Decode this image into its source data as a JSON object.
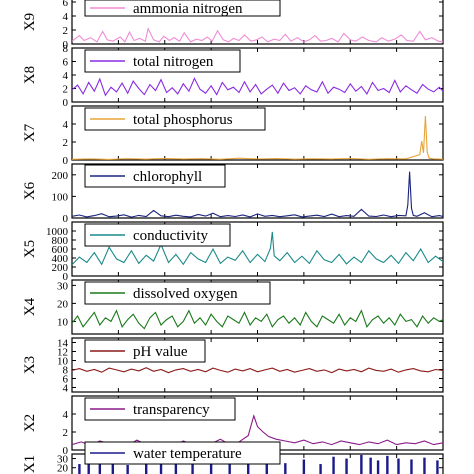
{
  "chart_data": [
    {
      "type": "line",
      "ylabel": "X9",
      "legend": "ammonia nitrogen",
      "color": "#f08cd6",
      "ylim": [
        0,
        8
      ],
      "yticks": [
        "0",
        "2",
        "4",
        "6"
      ],
      "x": [
        0,
        8,
        13,
        20,
        27,
        33,
        38,
        44,
        52,
        57,
        62,
        67,
        73,
        79,
        82,
        88,
        94,
        99,
        105,
        110,
        116,
        121,
        128,
        134,
        140,
        146,
        151,
        157,
        163,
        169,
        174,
        180,
        186,
        193,
        199,
        205,
        211,
        218,
        224,
        230,
        236,
        243,
        250,
        256,
        262,
        268,
        274,
        280,
        287,
        293,
        300,
        306,
        313,
        320,
        328,
        334,
        341,
        348,
        355,
        361,
        368,
        375,
        381,
        388,
        395,
        400
      ],
      "values": [
        0.4,
        1.2,
        0.5,
        0.9,
        0.3,
        1.8,
        0.6,
        0.4,
        1.0,
        0.3,
        1.7,
        0.5,
        0.8,
        0.4,
        2.2,
        0.6,
        0.3,
        1.1,
        0.5,
        0.9,
        0.4,
        1.6,
        0.3,
        0.7,
        0.5,
        1.0,
        0.4,
        1.9,
        0.6,
        0.3,
        0.8,
        0.5,
        1.3,
        0.4,
        0.6,
        1.0,
        0.3,
        0.7,
        0.5,
        1.4,
        0.4,
        0.9,
        0.3,
        0.6,
        1.2,
        0.4,
        0.5,
        0.8,
        0.3,
        1.5,
        0.6,
        0.4,
        1.0,
        0.5,
        0.3,
        0.9,
        0.4,
        0.7,
        1.3,
        0.5,
        0.4,
        1.8,
        0.6,
        0.9,
        0.4,
        0.3
      ]
    },
    {
      "type": "line",
      "ylabel": "X8",
      "legend": "total nitrogen",
      "color": "#8a2be2",
      "ylim": [
        0,
        8
      ],
      "yticks": [
        "0",
        "2",
        "4",
        "6",
        "8"
      ],
      "x": [
        0,
        6,
        12,
        18,
        24,
        30,
        36,
        42,
        48,
        54,
        60,
        66,
        72,
        78,
        84,
        90,
        96,
        102,
        108,
        114,
        120,
        126,
        132,
        138,
        144,
        150,
        156,
        162,
        168,
        174,
        180,
        186,
        192,
        198,
        204,
        210,
        216,
        222,
        228,
        234,
        240,
        246,
        252,
        258,
        264,
        270,
        276,
        282,
        288,
        294,
        300,
        306,
        312,
        318,
        324,
        330,
        336,
        342,
        348,
        354,
        360,
        366,
        372,
        378,
        384,
        390,
        396,
        400
      ],
      "values": [
        1.8,
        2.5,
        1.2,
        2.9,
        1.6,
        3.4,
        1.0,
        2.2,
        1.5,
        2.8,
        1.3,
        3.1,
        2.0,
        1.1,
        2.6,
        1.7,
        3.3,
        1.4,
        2.1,
        1.2,
        2.7,
        1.6,
        3.5,
        1.9,
        1.3,
        2.4,
        1.1,
        2.9,
        1.8,
        2.2,
        1.4,
        3.0,
        1.5,
        2.6,
        1.2,
        1.9,
        2.5,
        1.3,
        2.8,
        1.7,
        2.1,
        1.2,
        2.4,
        1.8,
        1.5,
        3.0,
        1.3,
        2.2,
        1.9,
        1.4,
        2.7,
        1.6,
        2.3,
        1.2,
        2.9,
        1.7,
        2.0,
        1.4,
        3.2,
        1.5,
        2.4,
        1.8,
        1.3,
        2.6,
        1.9,
        1.5,
        2.2,
        1.6
      ]
    },
    {
      "type": "line",
      "ylabel": "X7",
      "legend": "total phosphorus",
      "color": "#e8a33a",
      "ylim": [
        0,
        6
      ],
      "yticks": [
        "0",
        "2",
        "4"
      ],
      "x": [
        0,
        20,
        40,
        60,
        80,
        100,
        120,
        140,
        160,
        180,
        200,
        220,
        240,
        260,
        280,
        300,
        320,
        340,
        360,
        375,
        377,
        379,
        381,
        383,
        385,
        390,
        395,
        400
      ],
      "values": [
        0.08,
        0.12,
        0.07,
        0.15,
        0.09,
        0.18,
        0.1,
        0.14,
        0.08,
        0.2,
        0.11,
        0.16,
        0.09,
        0.13,
        0.1,
        0.17,
        0.08,
        0.15,
        0.12,
        0.6,
        2.1,
        0.8,
        4.9,
        0.9,
        0.2,
        0.12,
        0.1,
        0.09
      ]
    },
    {
      "type": "line",
      "ylabel": "X6",
      "legend": "chlorophyll",
      "color": "#1a237e",
      "ylim": [
        0,
        250
      ],
      "yticks": [
        "0",
        "100",
        "200"
      ],
      "x": [
        0,
        8,
        16,
        24,
        32,
        40,
        48,
        56,
        64,
        72,
        80,
        88,
        96,
        104,
        112,
        120,
        128,
        136,
        144,
        152,
        160,
        168,
        176,
        184,
        192,
        200,
        208,
        216,
        224,
        232,
        240,
        248,
        256,
        264,
        272,
        280,
        288,
        296,
        304,
        312,
        320,
        328,
        336,
        344,
        352,
        360,
        362,
        364,
        366,
        368,
        372,
        380,
        388,
        396,
        400
      ],
      "values": [
        8,
        14,
        5,
        11,
        20,
        6,
        9,
        15,
        4,
        12,
        7,
        35,
        10,
        6,
        13,
        8,
        5,
        16,
        9,
        22,
        6,
        11,
        7,
        14,
        5,
        19,
        8,
        12,
        6,
        10,
        15,
        5,
        9,
        13,
        7,
        18,
        6,
        11,
        8,
        40,
        9,
        7,
        14,
        6,
        12,
        10,
        60,
        215,
        45,
        12,
        8,
        24,
        6,
        11,
        7
      ]
    },
    {
      "type": "line",
      "ylabel": "X5",
      "legend": "conductivity",
      "color": "#1b8a8a",
      "ylim": [
        0,
        1200
      ],
      "yticks": [
        "0",
        "200",
        "400",
        "600",
        "800",
        "1000"
      ],
      "x": [
        0,
        8,
        16,
        24,
        32,
        40,
        48,
        56,
        64,
        72,
        80,
        88,
        96,
        104,
        112,
        120,
        128,
        136,
        144,
        152,
        160,
        168,
        176,
        184,
        192,
        200,
        208,
        214,
        216,
        218,
        224,
        232,
        240,
        248,
        256,
        264,
        272,
        280,
        288,
        296,
        304,
        312,
        320,
        328,
        336,
        344,
        352,
        360,
        368,
        376,
        384,
        392,
        400
      ],
      "values": [
        250,
        420,
        300,
        520,
        260,
        640,
        380,
        300,
        560,
        280,
        460,
        330,
        700,
        300,
        480,
        260,
        520,
        380,
        300,
        600,
        280,
        420,
        350,
        560,
        300,
        480,
        320,
        620,
        980,
        450,
        340,
        520,
        300,
        440,
        280,
        560,
        360,
        300,
        480,
        270,
        420,
        300,
        560,
        380,
        300,
        460,
        280,
        520,
        340,
        600,
        300,
        440,
        320
      ]
    },
    {
      "type": "line",
      "ylabel": "X4",
      "legend": "dissolved oxygen",
      "color": "#1b7a1b",
      "ylim": [
        3,
        33
      ],
      "yticks": [
        "10",
        "20",
        "30"
      ],
      "x": [
        0,
        6,
        12,
        18,
        24,
        30,
        36,
        42,
        48,
        54,
        60,
        66,
        72,
        78,
        84,
        90,
        96,
        102,
        108,
        114,
        120,
        126,
        132,
        138,
        144,
        150,
        156,
        162,
        168,
        174,
        180,
        186,
        192,
        198,
        204,
        210,
        216,
        222,
        228,
        234,
        240,
        246,
        252,
        258,
        264,
        270,
        276,
        282,
        288,
        294,
        300,
        306,
        312,
        318,
        324,
        330,
        336,
        342,
        348,
        354,
        360,
        366,
        372,
        378,
        384,
        390,
        396,
        400
      ],
      "values": [
        9,
        13,
        7,
        11,
        15,
        8,
        12,
        10,
        16,
        7,
        11,
        14,
        9,
        6,
        12,
        15,
        8,
        11,
        13,
        7,
        10,
        16,
        9,
        12,
        8,
        14,
        10,
        7,
        13,
        11,
        9,
        15,
        8,
        12,
        10,
        14,
        7,
        11,
        13,
        9,
        12,
        8,
        15,
        10,
        7,
        13,
        11,
        9,
        14,
        8,
        12,
        10,
        16,
        7,
        11,
        13,
        9,
        12,
        8,
        14,
        10,
        11,
        7,
        13,
        9,
        12,
        10,
        11
      ]
    },
    {
      "type": "line",
      "ylabel": "X3",
      "legend": "pH value",
      "color": "#8b1a1a",
      "ylim": [
        3,
        15
      ],
      "yticks": [
        "4",
        "6",
        "8",
        "10",
        "12",
        "14"
      ],
      "x": [
        0,
        8,
        16,
        24,
        32,
        40,
        48,
        56,
        64,
        72,
        80,
        88,
        96,
        104,
        112,
        120,
        128,
        136,
        144,
        152,
        160,
        168,
        176,
        184,
        192,
        200,
        208,
        216,
        224,
        232,
        240,
        248,
        256,
        264,
        272,
        280,
        288,
        296,
        304,
        312,
        320,
        328,
        336,
        344,
        352,
        360,
        368,
        376,
        384,
        392,
        400
      ],
      "values": [
        7.8,
        8.2,
        7.6,
        8.0,
        7.4,
        8.3,
        7.9,
        7.5,
        8.1,
        7.7,
        8.4,
        7.6,
        8.0,
        7.3,
        7.9,
        8.2,
        7.6,
        8.0,
        7.5,
        8.3,
        7.8,
        7.4,
        8.1,
        7.7,
        8.2,
        7.5,
        7.9,
        8.3,
        7.6,
        8.0,
        7.4,
        7.8,
        8.2,
        7.6,
        7.9,
        7.3,
        8.1,
        7.7,
        8.0,
        7.5,
        8.3,
        7.8,
        7.6,
        8.1,
        7.4,
        7.9,
        8.2,
        7.7,
        7.5,
        8.0,
        7.8
      ]
    },
    {
      "type": "line",
      "ylabel": "X2",
      "legend": "transparency",
      "color": "#8a1a8a",
      "ylim": [
        0,
        6
      ],
      "yticks": [
        "0",
        "2",
        "4"
      ],
      "x": [
        0,
        10,
        20,
        30,
        40,
        50,
        60,
        70,
        80,
        90,
        100,
        110,
        120,
        130,
        140,
        150,
        160,
        170,
        180,
        190,
        196,
        200,
        206,
        212,
        220,
        230,
        240,
        250,
        260,
        270,
        280,
        290,
        300,
        310,
        320,
        330,
        340,
        350,
        360,
        370,
        380,
        390,
        400
      ],
      "values": [
        0.6,
        0.9,
        0.5,
        1.0,
        0.7,
        0.8,
        0.5,
        1.1,
        0.6,
        0.9,
        0.7,
        0.5,
        1.0,
        0.6,
        0.8,
        0.7,
        1.2,
        0.6,
        0.9,
        1.6,
        3.8,
        2.6,
        2.0,
        1.5,
        1.2,
        1.0,
        0.8,
        1.1,
        0.7,
        0.9,
        0.6,
        1.0,
        0.8,
        0.6,
        0.9,
        0.7,
        1.1,
        0.6,
        0.8,
        0.7,
        1.0,
        0.6,
        0.8
      ]
    },
    {
      "type": "bar",
      "ylabel": "X1",
      "legend": "water temperature",
      "color": "#1a1a8a",
      "ylim": [
        0,
        35
      ],
      "yticks": [
        "20",
        "30"
      ],
      "x": [
        8,
        18,
        30,
        44,
        60,
        80,
        96,
        112,
        130,
        150,
        170,
        190,
        210,
        230,
        250,
        268,
        282,
        296,
        312,
        322,
        330,
        340,
        352,
        366,
        380,
        394
      ],
      "values": [
        24,
        29,
        26,
        30,
        23,
        27,
        31,
        25,
        28,
        24,
        30,
        26,
        27,
        25,
        29,
        24,
        32,
        30,
        34,
        31,
        28,
        33,
        30,
        29,
        31,
        28
      ]
    }
  ]
}
